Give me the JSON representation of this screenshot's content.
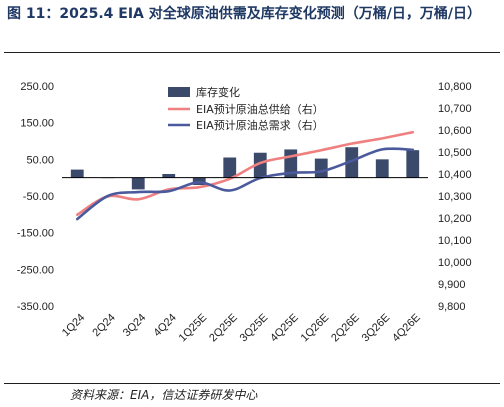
{
  "title": "图 11：2025.4 EIA 对全球原油供需及库存变化预测（万桶/日，万桶/日）",
  "source": "资料来源：EIA，信达证券研发中心",
  "colors": {
    "bar": "#3b4a6b",
    "supply": "#f08080",
    "demand": "#4a5a9c",
    "title": "#1f3864"
  },
  "chart_data": {
    "type": "bar+line",
    "categories": [
      "1Q24",
      "2Q24",
      "3Q24",
      "4Q24",
      "1Q25E",
      "2Q25E",
      "3Q25E",
      "4Q25E",
      "1Q26E",
      "2Q26E",
      "3Q26E",
      "4Q26E"
    ],
    "bar_series": {
      "name": "库存变化",
      "axis": "left",
      "values": [
        22,
        0,
        -32,
        10,
        -20,
        55,
        68,
        77,
        52,
        83,
        50,
        75
      ]
    },
    "line_series": [
      {
        "name": "EIA预计原油总供给（右）",
        "axis": "right",
        "values": [
          10215,
          10298,
          10285,
          10330,
          10340,
          10378,
          10450,
          10480,
          10508,
          10538,
          10562,
          10590
        ]
      },
      {
        "name": "EIA预计原油总需求（右）",
        "axis": "right",
        "values": [
          10195,
          10300,
          10318,
          10322,
          10362,
          10325,
          10382,
          10405,
          10412,
          10460,
          10512,
          10510
        ]
      }
    ],
    "y_left": {
      "min": -350,
      "max": 250,
      "ticks": [
        "250.00",
        "150.00",
        "50.00",
        "-50.00",
        "-150.00",
        "-250.00",
        "-350.00"
      ]
    },
    "y_right": {
      "min": 9800,
      "max": 10800,
      "ticks": [
        "10,800",
        "10,700",
        "10,600",
        "10,500",
        "10,400",
        "10,300",
        "10,200",
        "10,100",
        "10,000",
        "9,900",
        "9,800"
      ]
    },
    "legend_position": "top-center"
  }
}
